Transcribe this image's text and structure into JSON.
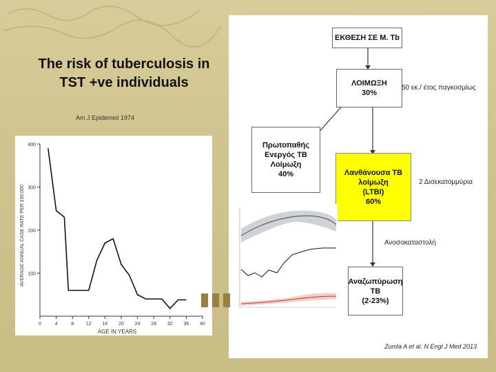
{
  "slide": {
    "title_line1": "The risk of tuberculosis in",
    "title_line2": "TST +ve individuals",
    "citation_left": "Am J Epidemiol 1974",
    "citation_right": "Zumla A et al. N Engl J Med 2013"
  },
  "flow": {
    "exposure": "ΕΚΘΕΣΗ ΣΕ M. Tb",
    "infection_line1": "ΛΟΙΜΩΞΗ",
    "infection_line2": "30%",
    "infection_note": "50 εκ./ έτος παγκοσμίως",
    "primary_line1": "Πρωτοπαθής",
    "primary_line2": "Ενεργός ΤΒ",
    "primary_line3": "Λοίμωξη",
    "primary_line4": "40%",
    "latent_line1": "Λανθάνουσα ΤΒ",
    "latent_line2": "λοίμωξη",
    "latent_line3": "(LTBI)",
    "latent_line4": "60%",
    "latent_note": "2 Δισεκατομμύρια",
    "immuno_note": "Ανοσοκαταστολή",
    "reactivation_line1": "Αναζωπύρωση",
    "reactivation_line2": "ΤΒ",
    "reactivation_line3": "(2-23%)"
  },
  "chart_data": [
    {
      "type": "line",
      "title": "",
      "xlabel": "AGE IN YEARS",
      "ylabel": "AVERAGE ANNUAL CASE RATE PER 100,000",
      "xlim": [
        0,
        40
      ],
      "ylim": [
        0,
        400
      ],
      "x_ticks": [
        0,
        4,
        8,
        12,
        16,
        20,
        24,
        28,
        32,
        36,
        40
      ],
      "y_ticks": [
        100,
        200,
        300,
        400
      ],
      "x": [
        2,
        4,
        6,
        7,
        9,
        11,
        12,
        14,
        16,
        18,
        20,
        22,
        24,
        26,
        28,
        30,
        32,
        34,
        36
      ],
      "values": [
        390,
        245,
        230,
        60,
        60,
        60,
        60,
        130,
        170,
        180,
        120,
        95,
        50,
        40,
        40,
        40,
        18,
        38,
        38
      ],
      "grid": false
    }
  ]
}
